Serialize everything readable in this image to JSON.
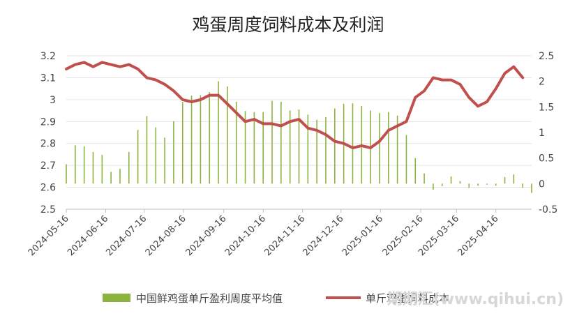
{
  "chart_data": {
    "type": "bar+line",
    "title": "鸡蛋周度饲料成本及利润",
    "left_axis": {
      "ylim": [
        2.5,
        3.2
      ],
      "ticks": [
        "3.2",
        "3.1",
        "3",
        "2.9",
        "2.8",
        "2.7",
        "2.6",
        "2.5"
      ]
    },
    "right_axis": {
      "ylim": [
        -0.5,
        2.5
      ],
      "ticks": [
        "2.5",
        "2",
        "1.5",
        "1",
        "0.5",
        "0",
        "-0.5"
      ]
    },
    "x_tick_labels": [
      "2024-05-16",
      "2024-06-16",
      "2024-07-16",
      "2024-08-16",
      "2024-09-16",
      "2024-10-16",
      "2024-11-16",
      "2024-12-16",
      "2025-01-16",
      "2025-02-16",
      "2025-03-16",
      "2025-04-16"
    ],
    "x_tick_weeks": [
      0,
      4.4,
      8.7,
      13.1,
      17.6,
      22.0,
      26.4,
      30.7,
      35.1,
      39.6,
      43.6,
      48.0
    ],
    "grid": true,
    "legend_position": "bottom",
    "series": [
      {
        "name": "中国鲜鸡蛋单斤盈利周度平均值",
        "type": "bar",
        "axis": "right",
        "color": "#8db33f",
        "values": [
          0.38,
          0.75,
          0.73,
          0.62,
          0.56,
          0.23,
          0.29,
          0.62,
          1.05,
          1.32,
          1.1,
          0.9,
          1.22,
          1.6,
          1.72,
          1.73,
          1.79,
          2.0,
          1.9,
          1.6,
          1.42,
          1.4,
          1.4,
          1.62,
          1.6,
          1.43,
          1.45,
          1.35,
          1.25,
          1.3,
          1.47,
          1.56,
          1.57,
          1.52,
          1.43,
          1.38,
          1.4,
          1.33,
          0.95,
          0.5,
          0.2,
          -0.12,
          -0.05,
          0.14,
          0.05,
          -0.08,
          -0.04,
          -0.02,
          -0.04,
          0.13,
          0.18,
          -0.08,
          -0.18
        ]
      },
      {
        "name": "单斤鸡蛋饲料成本",
        "type": "line",
        "axis": "left",
        "color": "#c0504d",
        "values": [
          3.14,
          3.16,
          3.17,
          3.15,
          3.17,
          3.16,
          3.15,
          3.16,
          3.14,
          3.1,
          3.09,
          3.07,
          3.04,
          3.0,
          2.99,
          3.0,
          3.02,
          3.02,
          2.98,
          2.94,
          2.9,
          2.91,
          2.89,
          2.89,
          2.88,
          2.9,
          2.91,
          2.87,
          2.86,
          2.84,
          2.81,
          2.8,
          2.78,
          2.79,
          2.78,
          2.81,
          2.86,
          2.88,
          2.9,
          3.01,
          3.04,
          3.1,
          3.09,
          3.09,
          3.07,
          3.01,
          2.97,
          2.99,
          3.05,
          3.12,
          3.15,
          3.1
        ]
      }
    ],
    "legend": [
      "中国鲜鸡蛋单斤盈利周度平均值",
      "单斤鸡蛋饲料成本"
    ]
  },
  "watermark": "期期汇(www.qihui.cn)"
}
